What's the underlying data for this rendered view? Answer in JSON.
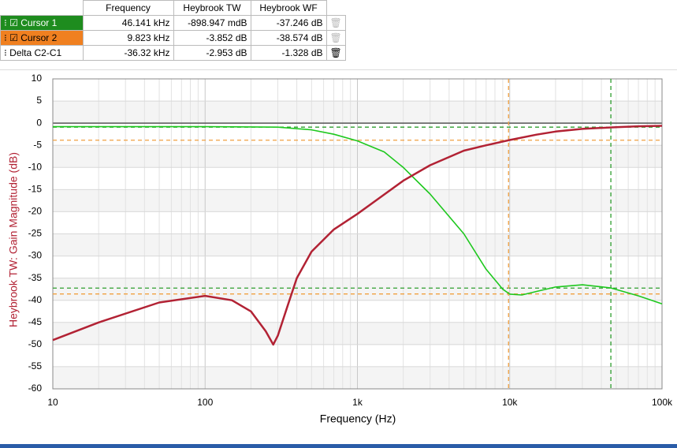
{
  "table": {
    "headers": [
      "Frequency",
      "Heybrook TW",
      "Heybrook WF"
    ],
    "delta": {
      "name": "Delta C2-C1",
      "cells": [
        "-36.32 kHz",
        "-2.953 dB",
        "-1.328 dB"
      ]
    }
  },
  "chart_data": {
    "type": "line",
    "xlabel": "Frequency (Hz)",
    "ylabel": "Heybrook TW: Gain Magnitude (dB)",
    "xscale": "log",
    "xlim": [
      10,
      100000
    ],
    "ylim": [
      -60,
      10
    ],
    "xticks": [
      10,
      100,
      {
        "value": 1000,
        "label": "1k"
      },
      {
        "value": 10000,
        "label": "10k"
      },
      {
        "value": 100000,
        "label": "100k"
      }
    ],
    "yticks": [
      10,
      5,
      0,
      -5,
      -10,
      -15,
      -20,
      -25,
      -30,
      -35,
      -40,
      -45,
      -50,
      -55,
      -60
    ],
    "grid": true,
    "ylabel_color": "#b22234",
    "series": [
      {
        "name": "Heybrook TW",
        "color": "#b22234",
        "x": [
          10,
          20,
          50,
          100,
          150,
          200,
          250,
          280,
          300,
          350,
          400,
          500,
          700,
          1000,
          2000,
          3000,
          5000,
          7000,
          10000,
          15000,
          20000,
          30000,
          50000,
          70000,
          100000
        ],
        "values": [
          -49,
          -45,
          -40.5,
          -39,
          -40,
          -42.5,
          -47,
          -50,
          -48,
          -41,
          -35,
          -29,
          -24,
          -20.5,
          -13,
          -9.5,
          -6.2,
          -5,
          -3.8,
          -2.6,
          -1.9,
          -1.3,
          -0.9,
          -0.7,
          -0.6
        ]
      },
      {
        "name": "Heybrook WF",
        "color": "#1ec81e",
        "x": [
          10,
          100,
          300,
          500,
          700,
          1000,
          1500,
          2000,
          3000,
          5000,
          7000,
          9000,
          10000,
          12000,
          15000,
          20000,
          30000,
          46000,
          70000,
          100000
        ],
        "values": [
          -0.8,
          -0.8,
          -0.9,
          -1.5,
          -2.5,
          -4,
          -6.5,
          -10,
          -16,
          -25,
          -33,
          -37.5,
          -38.6,
          -38.8,
          -38,
          -37,
          -36.5,
          -37.2,
          -39,
          -40.8
        ]
      }
    ],
    "cursors": [
      {
        "name": "Cursor 1",
        "color": "#2e9e2e",
        "frequency": {
          "value": 46141,
          "label": "46.141 kHz"
        },
        "tw": {
          "value": -0.898947,
          "label": "-898.947 mdB"
        },
        "wf": {
          "value": -37.246,
          "label": "-37.246 dB"
        }
      },
      {
        "name": "Cursor 2",
        "color": "#f0a040",
        "frequency": {
          "value": 9823,
          "label": "9.823 kHz"
        },
        "tw": {
          "value": -3.852,
          "label": "-3.852 dB"
        },
        "wf": {
          "value": -38.574,
          "label": "-38.574 dB"
        }
      }
    ]
  }
}
